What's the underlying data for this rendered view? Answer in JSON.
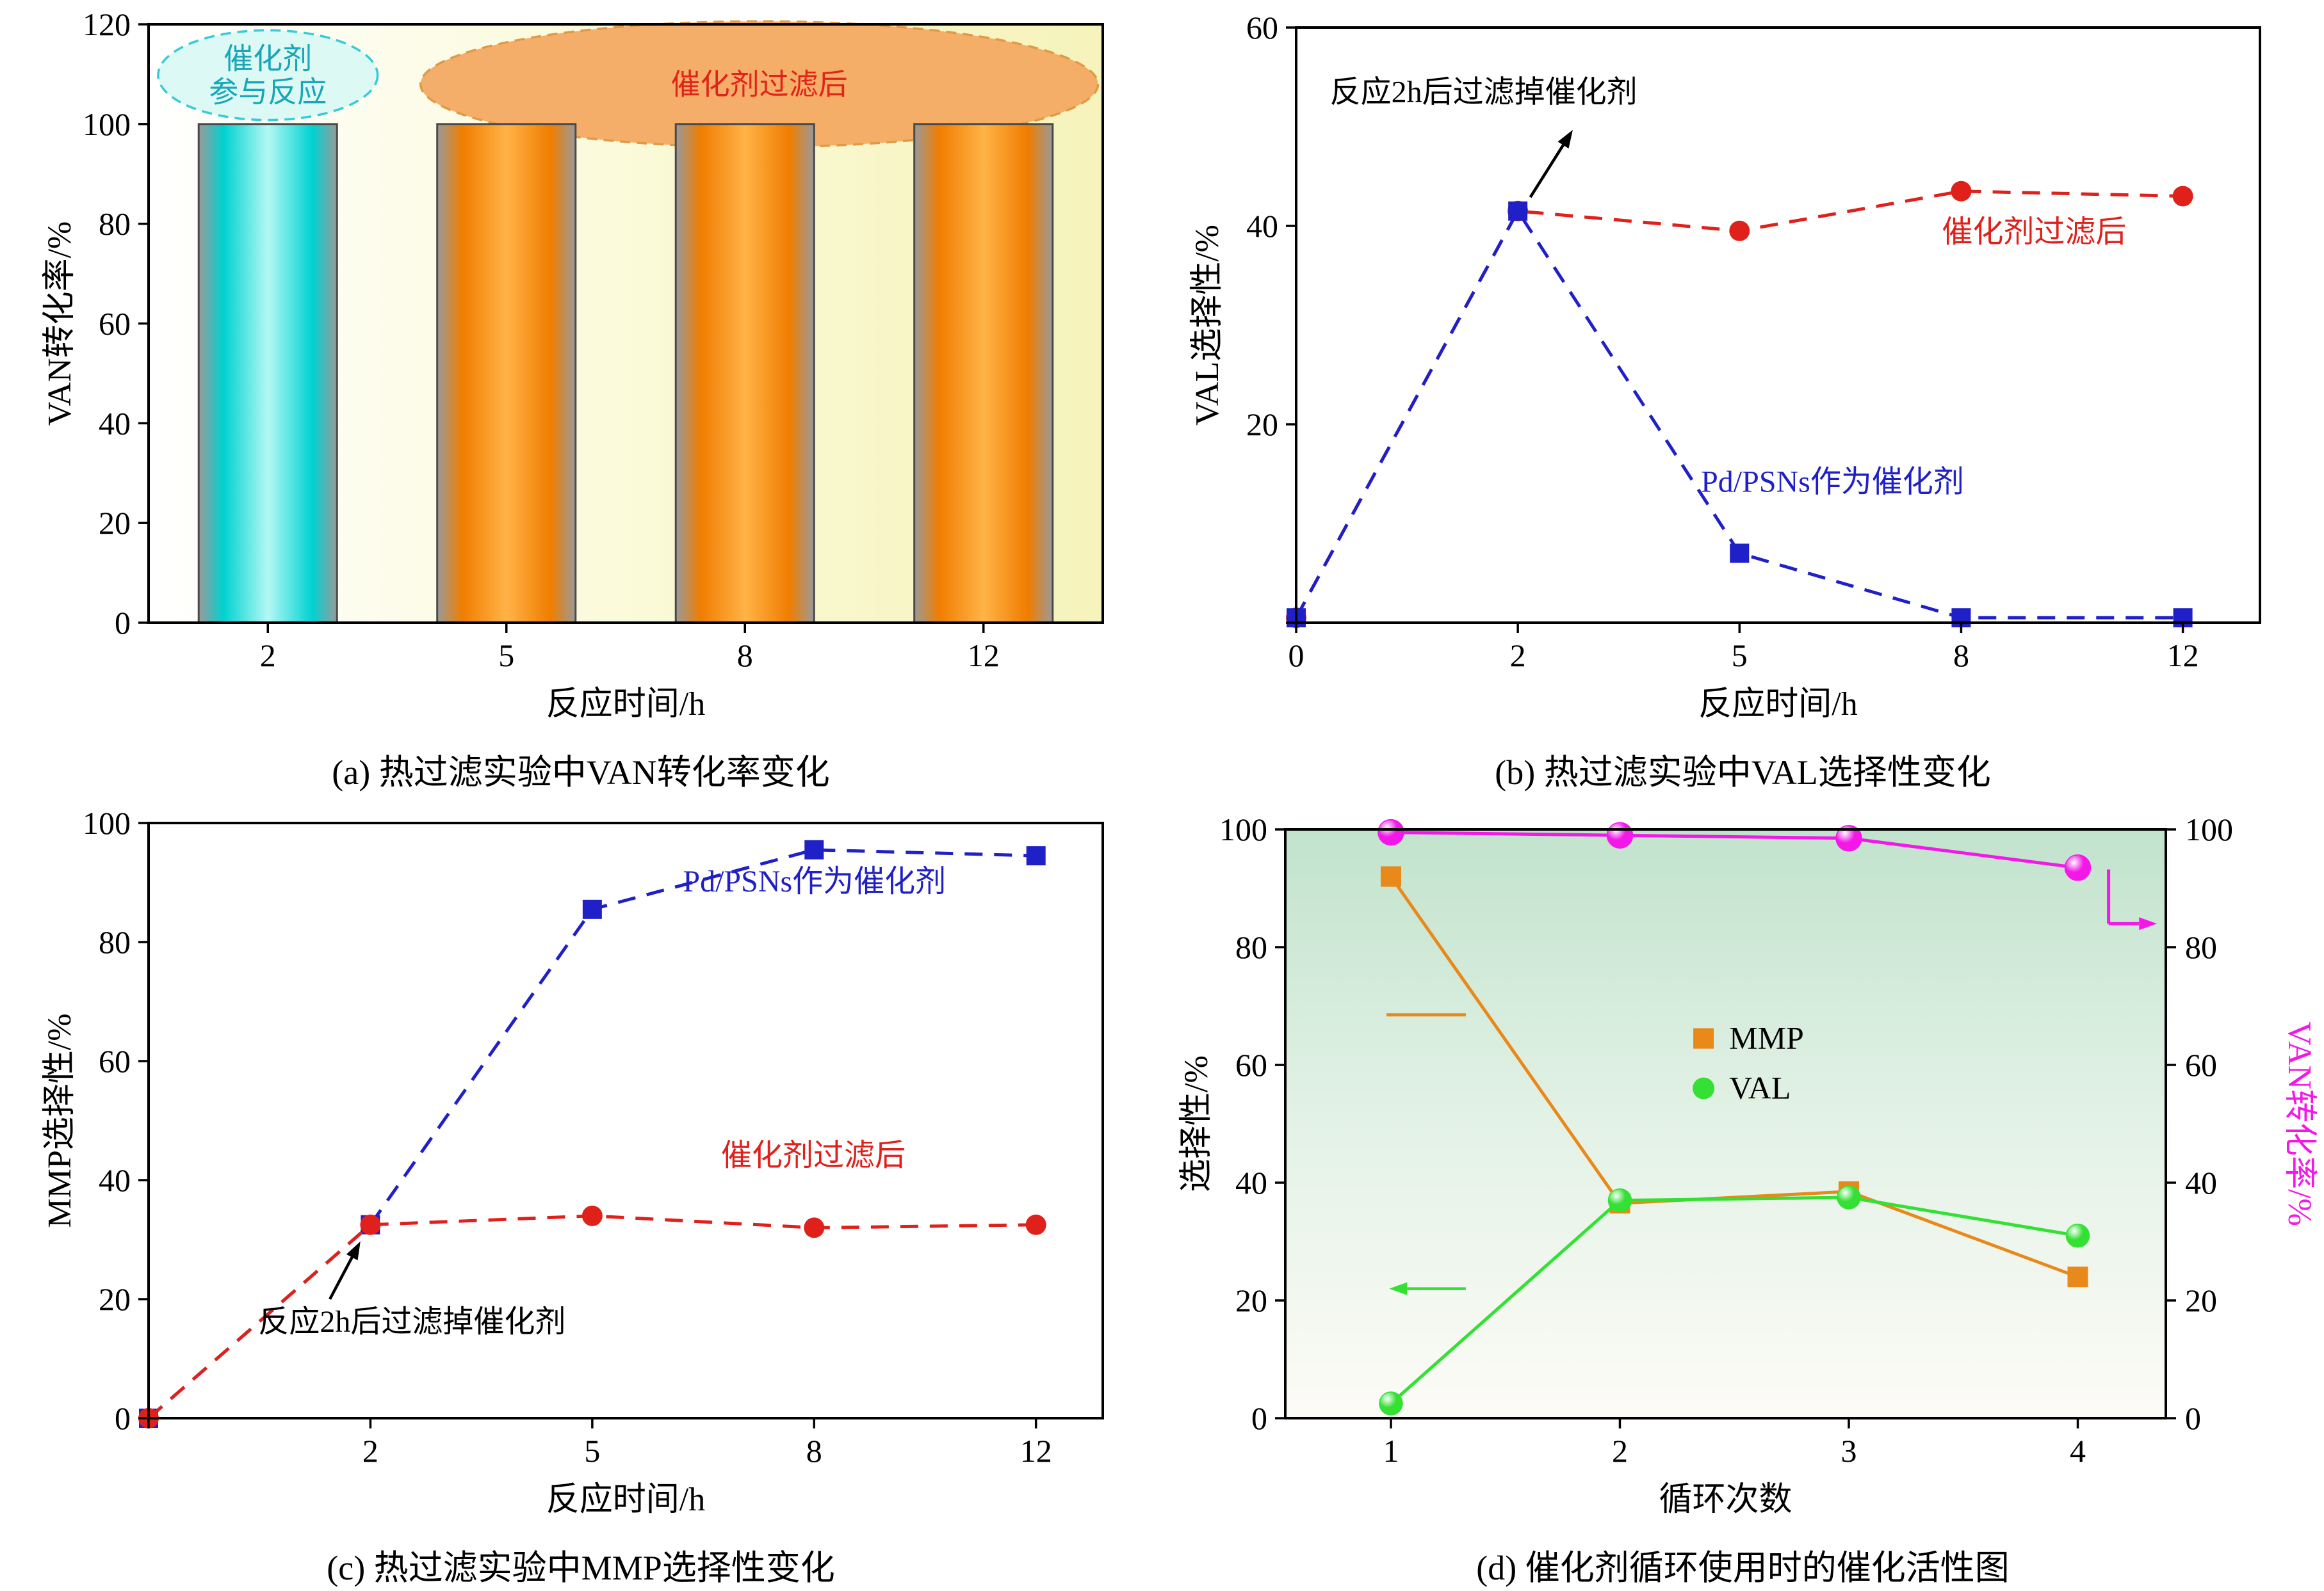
{
  "chart_data": [
    {
      "id": "a",
      "type": "bar",
      "caption": "(a) 热过滤实验中VAN转化率变化",
      "xlabel": "反应时间/h",
      "ylabel": "VAN转化率/%",
      "categories": [
        "2",
        "5",
        "8",
        "12"
      ],
      "values": [
        100,
        100,
        100,
        100
      ],
      "bar_styles": [
        "cyan",
        "orange",
        "orange",
        "orange"
      ],
      "ylim": [
        0,
        120
      ],
      "yticks": [
        0,
        20,
        40,
        60,
        80,
        100,
        120
      ],
      "ytick_labels": [
        "0",
        "20",
        "40",
        "60",
        "80",
        "100",
        "120"
      ],
      "colors": {
        "cyan_bar": [
          "#9a9a9a",
          "#00d2d2",
          "#b4f8f4",
          "#00d2d2",
          "#9a9a9a"
        ],
        "orange_bar": [
          "#9a9a9a",
          "#f07d00",
          "#ffb347",
          "#f07d00",
          "#9a9a9a"
        ],
        "bar_border": "#4a4a4a",
        "bg": [
          "#ffffff",
          "#fbfad9",
          "#f6f3bb"
        ]
      },
      "annotations": [
        {
          "kind": "ellipse",
          "cx": 0.125,
          "cy": 0.085,
          "rx": 0.115,
          "ry": 0.075,
          "fill": "#d9f8f4",
          "stroke": "#35cbd8",
          "lines": [
            "催化剂",
            "参与反应"
          ],
          "text_color": "#18a6b8"
        },
        {
          "kind": "ellipse",
          "cx": 0.64,
          "cy": 0.1,
          "rx": 0.355,
          "ry": 0.105,
          "fill": "#f3a75f",
          "stroke": "#e09a45",
          "lines": [
            "催化剂过滤后"
          ],
          "text_color": "#e2231a"
        }
      ]
    },
    {
      "id": "b",
      "type": "line",
      "caption": "(b) 热过滤实验中VAL选择性变化",
      "xlabel": "反应时间/h",
      "ylabel": "VAL选择性/%",
      "categories": [
        "0",
        "2",
        "5",
        "8",
        "12"
      ],
      "xpad": [
        0,
        0.08
      ],
      "ylim": [
        0,
        60
      ],
      "yticks": [
        0,
        20,
        40,
        60
      ],
      "ytick_labels": [
        "",
        "20",
        "40",
        "60"
      ],
      "series": [
        {
          "name": "催化剂过滤后",
          "color": "#e0201a",
          "marker": "circle",
          "dash": true,
          "values": [
            0.5,
            41.5,
            39.5,
            43.5,
            43
          ]
        },
        {
          "name": "Pd/PSNs作为催化剂",
          "color": "#2020c8",
          "marker": "square",
          "dash": true,
          "values": [
            0.5,
            41.5,
            7,
            0.5,
            0.5
          ]
        }
      ],
      "labels": [
        {
          "text": "催化剂过滤后",
          "color": "#e0201a",
          "x": 0.67,
          "y": 0.36
        },
        {
          "text": "Pd/PSNs作为催化剂",
          "color": "#2020c8",
          "x": 0.42,
          "y": 0.78
        }
      ],
      "annotations": [
        {
          "kind": "text",
          "x": 0.035,
          "y": 0.125,
          "text": "反应2h后过滤掉催化剂",
          "color": "#000000",
          "anchor": "start"
        },
        {
          "kind": "arrow",
          "from": [
            0.243,
            0.285
          ],
          "to": [
            0.287,
            0.172
          ],
          "color": "#000000"
        }
      ]
    },
    {
      "id": "c",
      "type": "line",
      "caption": "(c) 热过滤实验中MMP选择性变化",
      "xlabel": "反应时间/h",
      "ylabel": "MMP选择性/%",
      "categories": [
        "",
        "2",
        "5",
        "8",
        "12"
      ],
      "xpad": [
        0,
        0.07
      ],
      "ylim": [
        0,
        100
      ],
      "yticks": [
        0,
        20,
        40,
        60,
        80,
        100
      ],
      "ytick_labels": [
        "0",
        "20",
        "40",
        "60",
        "80",
        "100"
      ],
      "series": [
        {
          "name": "Pd/PSNs作为催化剂",
          "color": "#2020c8",
          "marker": "square",
          "dash": true,
          "values": [
            0,
            32.5,
            85.5,
            95.5,
            94.5
          ]
        },
        {
          "name": "催化剂过滤后",
          "color": "#e0201a",
          "marker": "circle",
          "dash": true,
          "values": [
            0,
            32.5,
            34,
            32,
            32.5
          ]
        }
      ],
      "labels": [
        {
          "text": "Pd/PSNs作为催化剂",
          "color": "#2020c8",
          "x": 0.56,
          "y": 0.115
        },
        {
          "text": "催化剂过滤后",
          "color": "#e0201a",
          "x": 0.6,
          "y": 0.575
        }
      ],
      "annotations": [
        {
          "kind": "text",
          "x": 0.115,
          "y": 0.855,
          "text": "反应2h后过滤掉催化剂",
          "color": "#000000",
          "anchor": "start"
        },
        {
          "kind": "arrow",
          "from": [
            0.19,
            0.8
          ],
          "to": [
            0.222,
            0.703
          ],
          "color": "#000000"
        }
      ]
    },
    {
      "id": "d",
      "type": "line",
      "caption": "(d) 催化剂循环使用时的催化活性图",
      "xlabel": "循环次数",
      "ylabel": "选择性/%",
      "ylabel_right": "VAN转化率/%",
      "right_axis": true,
      "right_label_color": "#f318e8",
      "categories": [
        "1",
        "2",
        "3",
        "4"
      ],
      "xpad": [
        0.12,
        0.1
      ],
      "ylim": [
        0,
        100
      ],
      "yticks": [
        0,
        20,
        40,
        60,
        80,
        100
      ],
      "ytick_labels": [
        "0",
        "20",
        "40",
        "60",
        "80",
        "100"
      ],
      "bg": [
        "#c2e3cd",
        "#e3f2e6",
        "#fdfbf7"
      ],
      "series": [
        {
          "name": "VAN转化率",
          "color": "#f318e8",
          "marker": "circle-gloss",
          "dash": false,
          "values": [
            99.5,
            99,
            98.5,
            93.5
          ],
          "msize": 18
        },
        {
          "name": "MMP",
          "color": "#e8891a",
          "marker": "square",
          "dash": false,
          "values": [
            92,
            36.5,
            38.5,
            24
          ],
          "msize": 16
        },
        {
          "name": "VAL",
          "color": "#35e035",
          "marker": "circle-gloss",
          "dash": false,
          "values": [
            2.5,
            37,
            37.5,
            31
          ],
          "msize": 16
        }
      ],
      "legend": {
        "x": 0.475,
        "y": 0.355,
        "items": [
          {
            "label": "MMP",
            "color": "#e8891a",
            "marker": "square"
          },
          {
            "label": "VAL",
            "color": "#35e035",
            "marker": "circle"
          }
        ]
      },
      "annotations": [
        {
          "kind": "line",
          "from": [
            0.115,
            0.315
          ],
          "to": [
            0.205,
            0.315
          ],
          "color": "#e8891a"
        },
        {
          "kind": "arrow",
          "from": [
            0.205,
            0.78
          ],
          "to": [
            0.118,
            0.78
          ],
          "color": "#35e035"
        },
        {
          "kind": "elbow-arrow",
          "points": [
            [
              0.935,
              0.068
            ],
            [
              0.935,
              0.16
            ],
            [
              0.99,
              0.16
            ]
          ],
          "color": "#f318e8"
        }
      ]
    }
  ]
}
